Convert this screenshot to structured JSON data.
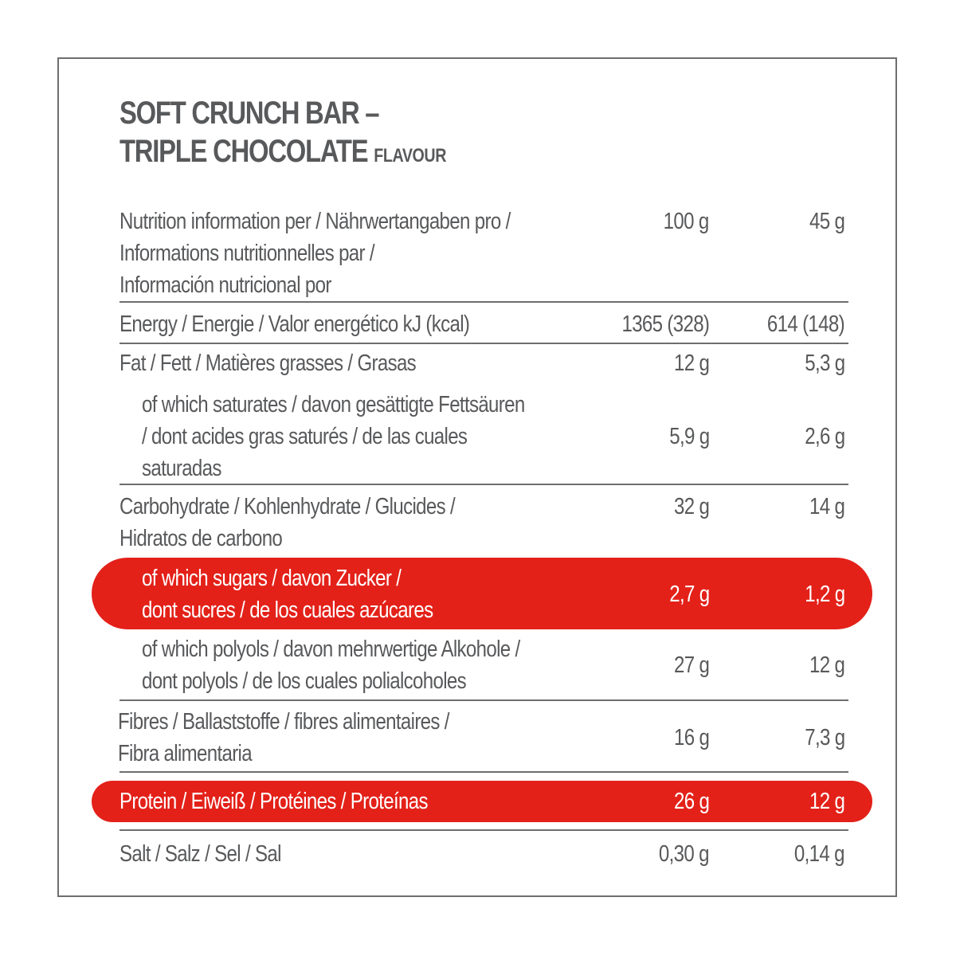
{
  "title": {
    "line1": "SOFT CRUNCH BAR –",
    "line2": "TRIPLE CHOCOLATE",
    "flavour": "FLAVOUR"
  },
  "header": {
    "label_lines": [
      "Nutrition information per / Nährwertangaben pro /",
      "Informations nutritionnelles par /",
      "Información nutricional por"
    ],
    "col1": "100 g",
    "col2": "45 g"
  },
  "rows": [
    {
      "lines": [
        "Energy / Energie / Valor energético kJ (kcal)"
      ],
      "v1": "1365 (328)",
      "v2": "614 (148)"
    },
    {
      "lines": [
        "Fat / Fett / Matières grasses / Grasas"
      ],
      "v1": "12 g",
      "v2": "5,3 g"
    },
    {
      "lines": [
        "of which saturates / davon gesättigte Fettsäuren",
        "/ dont acides gras saturés / de las cuales",
        "saturadas"
      ],
      "v1": "5,9 g",
      "v2": "2,6 g"
    },
    {
      "lines": [
        "Carbohydrate / Kohlenhydrate / Glucides /",
        "Hidratos de carbono"
      ],
      "v1": "32 g",
      "v2": "14 g"
    },
    {
      "lines": [
        "of which sugars / davon Zucker /",
        "dont sucres / de los cuales azúcares"
      ],
      "v1": "2,7 g",
      "v2": "1,2 g"
    },
    {
      "lines": [
        "of which polyols / davon mehrwertige Alkohole /",
        "dont polyols / de los cuales polialcoholes"
      ],
      "v1": "27 g",
      "v2": "12 g"
    },
    {
      "lines": [
        "Fibres / Ballaststoffe / fibres alimentaires /",
        "Fibra alimentaria"
      ],
      "v1": "16 g",
      "v2": "7,3 g"
    },
    {
      "lines": [
        "Protein / Eiweiß / Protéines / Proteínas"
      ],
      "v1": "26 g",
      "v2": "12 g"
    },
    {
      "lines": [
        "Salt / Salz / Sel / Sal"
      ],
      "v1": "0,30 g",
      "v2": "0,14 g"
    }
  ],
  "colors": {
    "highlight": "#e32119",
    "text": "#58595b",
    "border": "#6d6e70"
  }
}
